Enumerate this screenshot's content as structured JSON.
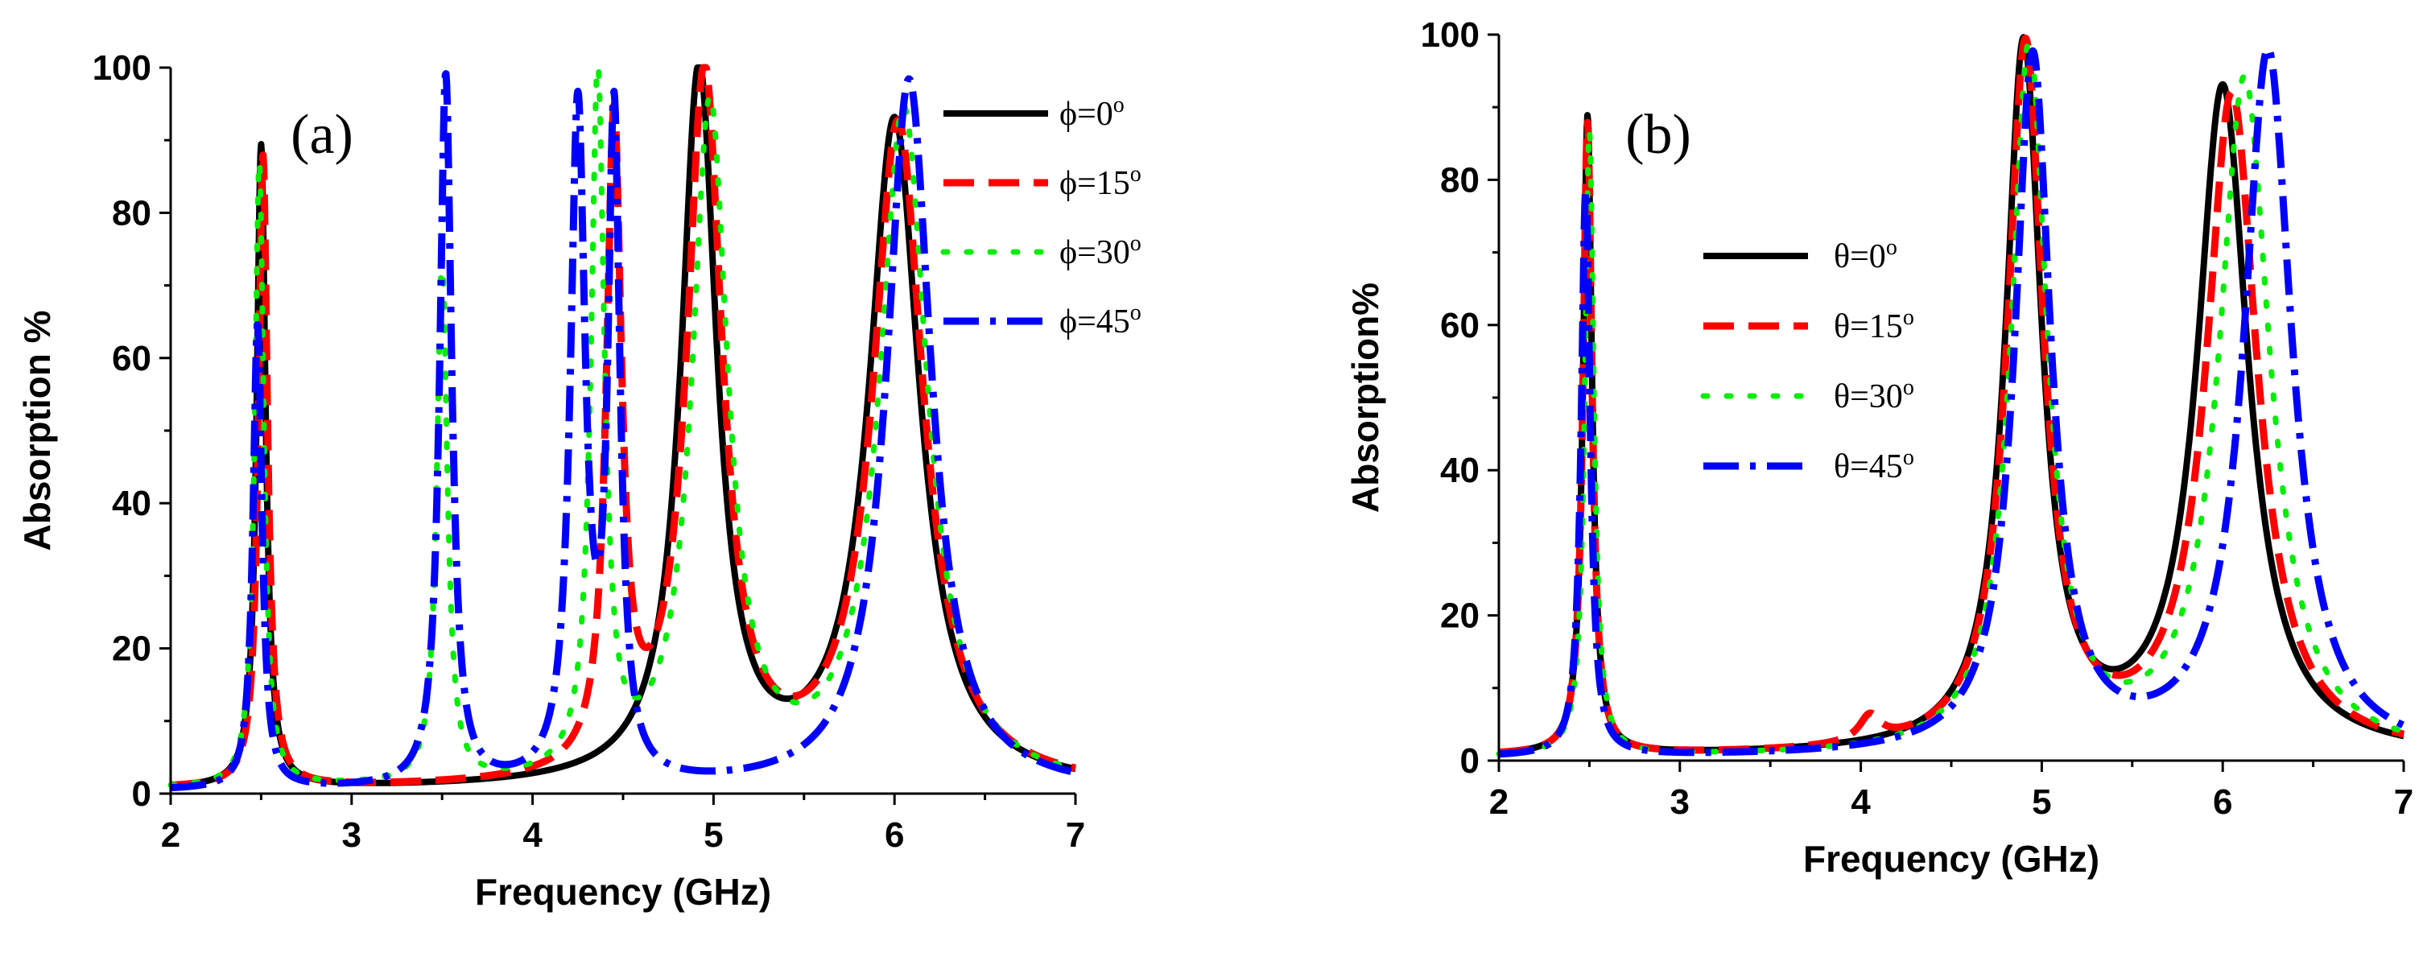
{
  "chart_data": [
    {
      "type": "line",
      "panel_label": "(a)",
      "xlabel": "Frequency (GHz)",
      "ylabel": "Absorption %",
      "xlim": [
        2,
        7
      ],
      "ylim": [
        0,
        100
      ],
      "xticks": [
        "2",
        "3",
        "4",
        "5",
        "6",
        "7"
      ],
      "yticks": [
        "0",
        "20",
        "40",
        "60",
        "80",
        "100"
      ],
      "legend_position": "top-right",
      "series": [
        {
          "name": "ϕ=0°",
          "legend_label": "ϕ=0",
          "legend_super": "o",
          "color": "#000000",
          "style": "solid",
          "peaks": [
            {
              "f": 2.5,
              "amp": 88.5,
              "w": 0.03
            },
            {
              "f": 4.92,
              "amp": 98,
              "w": 0.12
            },
            {
              "f": 6.0,
              "amp": 91.5,
              "w": 0.17
            }
          ],
          "baseline": 0.5
        },
        {
          "name": "ϕ=15°",
          "legend_label": "ϕ=15",
          "legend_super": "o",
          "color": "#ff0000",
          "style": "dashed",
          "peaks": [
            {
              "f": 2.51,
              "amp": 87,
              "w": 0.03
            },
            {
              "f": 4.45,
              "amp": 88,
              "w": 0.05
            },
            {
              "f": 4.95,
              "amp": 97,
              "w": 0.12
            },
            {
              "f": 6.02,
              "amp": 91,
              "w": 0.17
            }
          ],
          "baseline": 0.5
        },
        {
          "name": "ϕ=30°",
          "legend_label": "ϕ=30",
          "legend_super": "o",
          "color": "#00ee00",
          "style": "dotted",
          "peaks": [
            {
              "f": 2.49,
              "amp": 86,
              "w": 0.03
            },
            {
              "f": 3.5,
              "amp": 72,
              "w": 0.035
            },
            {
              "f": 4.36,
              "amp": 96,
              "w": 0.045
            },
            {
              "f": 4.98,
              "amp": 93,
              "w": 0.12
            },
            {
              "f": 6.05,
              "amp": 93,
              "w": 0.16
            }
          ],
          "baseline": 0.5
        },
        {
          "name": "ϕ=45°",
          "legend_label": "ϕ=45",
          "legend_super": "o",
          "color": "#0000ff",
          "style": "dashdot",
          "peaks": [
            {
              "f": 2.48,
              "amp": 64,
              "w": 0.03
            },
            {
              "f": 3.52,
              "amp": 98,
              "w": 0.04
            },
            {
              "f": 4.25,
              "amp": 92,
              "w": 0.05
            },
            {
              "f": 4.45,
              "amp": 90,
              "w": 0.04
            },
            {
              "f": 6.08,
              "amp": 98,
              "w": 0.15
            }
          ],
          "baseline": 0.3
        }
      ]
    },
    {
      "type": "line",
      "panel_label": "(b)",
      "xlabel": "Frequency (GHz)",
      "ylabel": "Absorption%",
      "xlim": [
        2,
        7
      ],
      "ylim": [
        0,
        100
      ],
      "xticks": [
        "2",
        "3",
        "4",
        "5",
        "6",
        "7"
      ],
      "yticks": [
        "0",
        "20",
        "40",
        "60",
        "80",
        "100"
      ],
      "legend_position": "center-left",
      "series": [
        {
          "name": "θ=0°",
          "legend_label": "θ=0",
          "legend_super": "o",
          "color": "#000000",
          "style": "solid",
          "peaks": [
            {
              "f": 2.49,
              "amp": 88,
              "w": 0.03
            },
            {
              "f": 4.9,
              "amp": 97,
              "w": 0.12
            },
            {
              "f": 6.0,
              "amp": 91.5,
              "w": 0.17
            }
          ],
          "baseline": 0.5
        },
        {
          "name": "θ=15°",
          "legend_label": "θ=15",
          "legend_super": "o",
          "color": "#ff0000",
          "style": "dashed",
          "peaks": [
            {
              "f": 2.49,
              "amp": 87,
              "w": 0.03
            },
            {
              "f": 4.05,
              "amp": 3.5,
              "w": 0.07
            },
            {
              "f": 4.91,
              "amp": 97,
              "w": 0.12
            },
            {
              "f": 6.05,
              "amp": 90.5,
              "w": 0.17
            }
          ],
          "baseline": 0.5
        },
        {
          "name": "θ=30°",
          "legend_label": "θ=30",
          "legend_super": "o",
          "color": "#00ee00",
          "style": "dotted",
          "peaks": [
            {
              "f": 2.5,
              "amp": 86,
              "w": 0.03
            },
            {
              "f": 4.93,
              "amp": 97,
              "w": 0.12
            },
            {
              "f": 6.12,
              "amp": 93,
              "w": 0.17
            }
          ],
          "baseline": 0.3
        },
        {
          "name": "θ=45°",
          "legend_label": "θ=45",
          "legend_super": "o",
          "color": "#0000ff",
          "style": "dashdot",
          "peaks": [
            {
              "f": 2.48,
              "amp": 78,
              "w": 0.03
            },
            {
              "f": 4.95,
              "amp": 96,
              "w": 0.12
            },
            {
              "f": 6.25,
              "amp": 97,
              "w": 0.16
            }
          ],
          "baseline": 0.3
        }
      ]
    }
  ]
}
